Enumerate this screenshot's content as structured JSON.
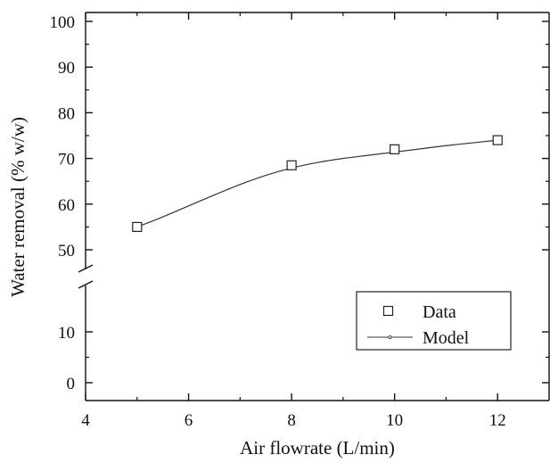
{
  "chart_data": {
    "type": "scatter",
    "title": "",
    "xlabel": "Air flowrate (L/min)",
    "ylabel": "Water removal (% w/w)",
    "xlim": [
      4,
      13
    ],
    "ylim": [
      0,
      100
    ],
    "y_axis_break": [
      10,
      50
    ],
    "x_ticks": [
      4,
      6,
      8,
      10,
      12
    ],
    "y_ticks": [
      0,
      10,
      50,
      60,
      70,
      80,
      90,
      100
    ],
    "grid": false,
    "legend_position": "bottom-right",
    "series": [
      {
        "name": "Data",
        "style": "hollow-square-markers",
        "x": [
          5,
          8,
          10,
          12
        ],
        "y": [
          55,
          68.5,
          72,
          74
        ]
      },
      {
        "name": "Model",
        "style": "line",
        "x": [
          5,
          5.5,
          6,
          6.5,
          7,
          7.5,
          8,
          8.5,
          9,
          9.5,
          10,
          10.5,
          11,
          11.5,
          12
        ],
        "y": [
          55,
          57.2,
          59.6,
          62,
          64.3,
          66.3,
          67.9,
          69.1,
          70,
          70.7,
          71.4,
          72.1,
          72.8,
          73.4,
          74
        ]
      }
    ]
  }
}
